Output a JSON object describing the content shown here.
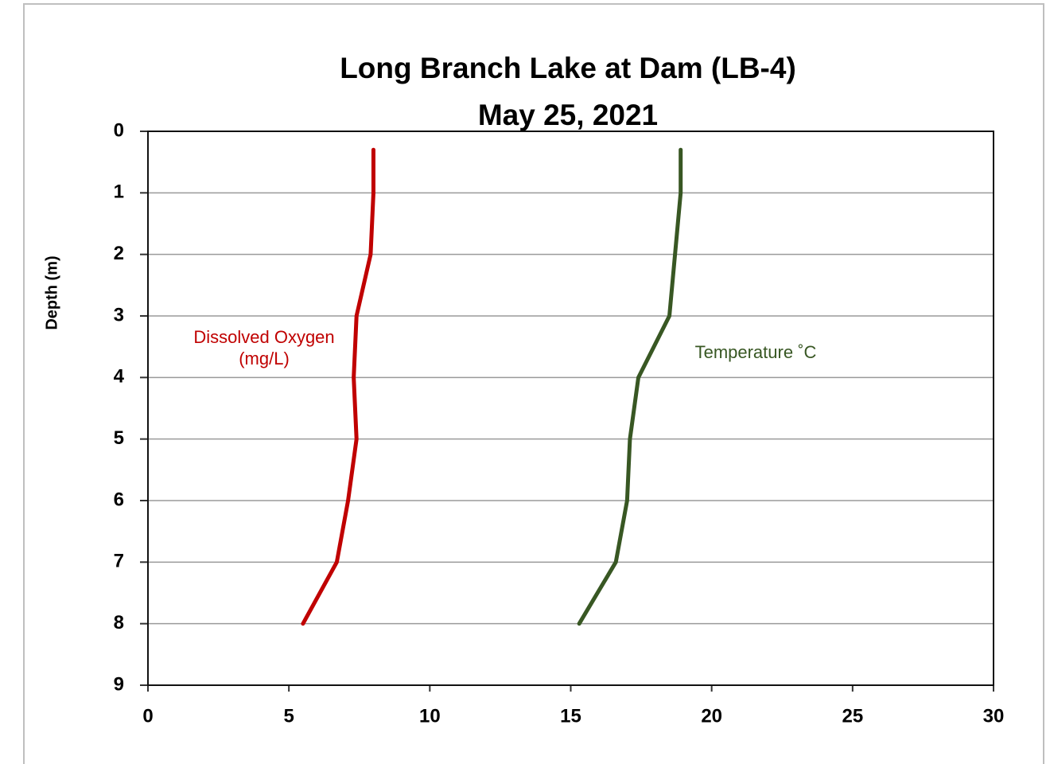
{
  "chart_data": {
    "type": "line",
    "title": "Long Branch Lake at Dam (LB-4)",
    "subtitle": "May 25, 2021",
    "y_label": "Depth (m)",
    "y_inverted": true,
    "depths": [
      0.3,
      1,
      2,
      3,
      4,
      5,
      6,
      7,
      8
    ],
    "series": [
      {
        "name": "Dissolved Oxygen (mg/L)",
        "color": "#c00000",
        "values": [
          8.0,
          8.0,
          7.9,
          7.4,
          7.3,
          7.4,
          7.1,
          6.7,
          5.5
        ]
      },
      {
        "name": "Temperature ˚C",
        "color": "#385723",
        "values": [
          18.9,
          18.9,
          18.7,
          18.5,
          17.4,
          17.1,
          17.0,
          16.6,
          15.3
        ]
      }
    ],
    "xlim": [
      0,
      30
    ],
    "xticks": [
      0,
      5,
      10,
      15,
      20,
      25,
      30
    ],
    "ylim": [
      0,
      9
    ],
    "yticks": [
      0,
      1,
      2,
      3,
      4,
      5,
      6,
      7,
      8,
      9
    ],
    "grid": true
  }
}
